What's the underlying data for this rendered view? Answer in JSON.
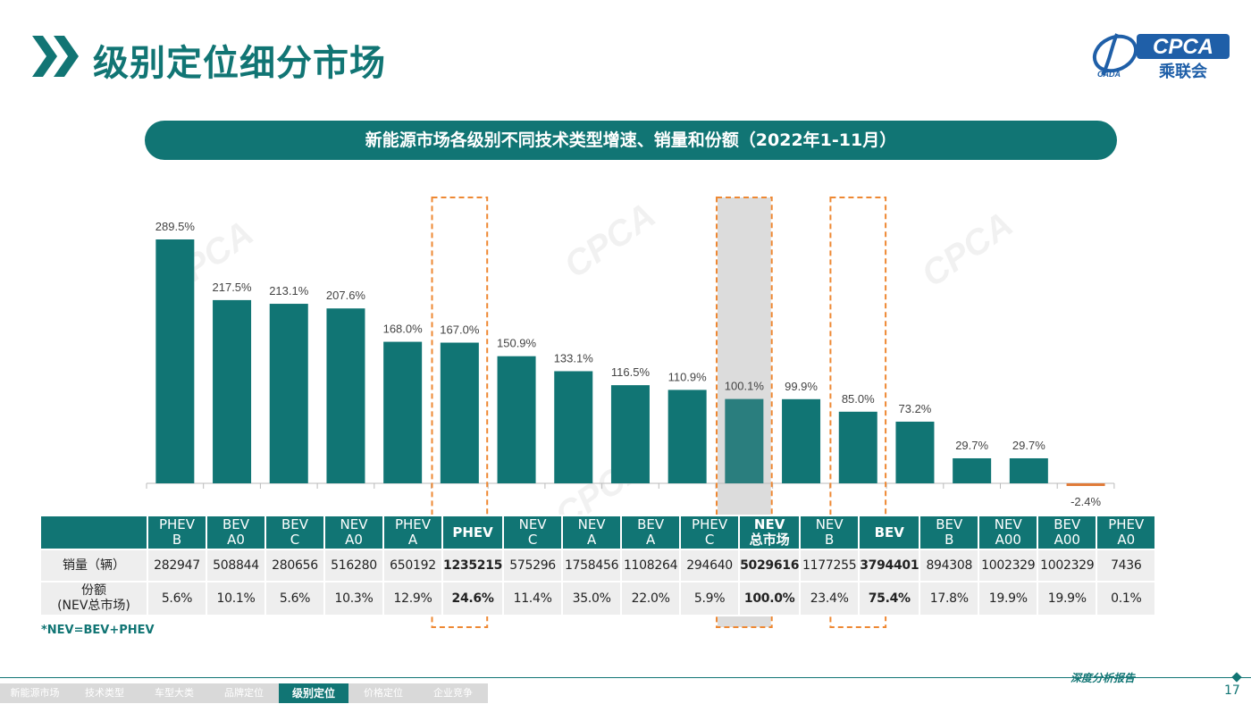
{
  "header": {
    "title": "级别定位细分市场",
    "logo_text": "CPCA",
    "logo_subtext": "乘联会",
    "logo_small": "CADA"
  },
  "banner": {
    "text": "新能源市场各级别不同技术类型增速、销量和份额（2022年1-11月）"
  },
  "chart_data": {
    "type": "bar",
    "title": "新能源市场各级别不同技术类型增速、销量和份额（2022年1-11月）",
    "categories": [
      "PHEV B",
      "BEV A0",
      "BEV C",
      "NEV A0",
      "PHEV A",
      "PHEV",
      "NEV C",
      "NEV A",
      "BEV A",
      "PHEV C",
      "NEV 总市场",
      "NEV B",
      "BEV",
      "BEV B",
      "NEV A00",
      "BEV A00",
      "PHEV A0"
    ],
    "series": [
      {
        "values": [
          289.5,
          217.5,
          213.1,
          207.6,
          168.0,
          167.0,
          150.9,
          133.1,
          116.5,
          110.9,
          100.1,
          99.9,
          85.0,
          73.2,
          29.7,
          29.7,
          -2.4
        ]
      }
    ],
    "value_labels": [
      "289.5%",
      "217.5%",
      "213.1%",
      "207.6%",
      "168.0%",
      "167.0%",
      "150.9%",
      "133.1%",
      "116.5%",
      "110.9%",
      "100.1%",
      "99.9%",
      "85.0%",
      "73.2%",
      "29.7%",
      "29.7%",
      "-2.4%"
    ],
    "value_unit": "%",
    "ylim": [
      -10,
      300
    ],
    "grid": false,
    "colors": {
      "bar": "#117574",
      "negative_bar": "#e07b39",
      "nev_total_bar": "#2a7e7e",
      "highlight_fill": "#d6d6d6",
      "dashed_box": "#ee8833"
    },
    "highlight_dashed": [
      "PHEV",
      "NEV 总市场",
      "BEV"
    ],
    "highlight_shaded": [
      "NEV 总市场"
    ]
  },
  "table": {
    "headers": [
      {
        "l1": "PHEV",
        "l2": "B",
        "bold": false
      },
      {
        "l1": "BEV",
        "l2": "A0",
        "bold": false
      },
      {
        "l1": "BEV",
        "l2": "C",
        "bold": false
      },
      {
        "l1": "NEV",
        "l2": "A0",
        "bold": false
      },
      {
        "l1": "PHEV",
        "l2": "A",
        "bold": false
      },
      {
        "l1": "PHEV",
        "l2": "",
        "bold": true
      },
      {
        "l1": "NEV",
        "l2": "C",
        "bold": false
      },
      {
        "l1": "NEV",
        "l2": "A",
        "bold": false
      },
      {
        "l1": "BEV",
        "l2": "A",
        "bold": false
      },
      {
        "l1": "PHEV",
        "l2": "C",
        "bold": false
      },
      {
        "l1": "NEV",
        "l2": "总市场",
        "bold": true
      },
      {
        "l1": "NEV",
        "l2": "B",
        "bold": false
      },
      {
        "l1": "BEV",
        "l2": "",
        "bold": true
      },
      {
        "l1": "BEV",
        "l2": "B",
        "bold": false
      },
      {
        "l1": "NEV",
        "l2": "A00",
        "bold": false
      },
      {
        "l1": "BEV",
        "l2": "A00",
        "bold": false
      },
      {
        "l1": "PHEV",
        "l2": "A0",
        "bold": false
      }
    ],
    "sales_label": "销量（辆）",
    "sales": [
      "282947",
      "508844",
      "280656",
      "516280",
      "650192",
      "1235215",
      "575296",
      "1758456",
      "1108264",
      "294640",
      "5029616",
      "1177255",
      "3794401",
      "894308",
      "1002329",
      "1002329",
      "7436"
    ],
    "share_label_l1": "份额",
    "share_label_l2": "(NEV总市场)",
    "shares": [
      "5.6%",
      "10.1%",
      "5.6%",
      "10.3%",
      "12.9%",
      "24.6%",
      "11.4%",
      "35.0%",
      "22.0%",
      "5.9%",
      "100.0%",
      "23.4%",
      "75.4%",
      "17.8%",
      "19.9%",
      "19.9%",
      "0.1%"
    ],
    "bold_columns": [
      5,
      10,
      12
    ]
  },
  "note": "*NEV=BEV+PHEV",
  "footer": {
    "caption": "深度分析报告",
    "page": "17",
    "nav": [
      {
        "label": "新能源市场",
        "active": false
      },
      {
        "label": "技术类型",
        "active": false
      },
      {
        "label": "车型大类",
        "active": false
      },
      {
        "label": "品牌定位",
        "active": false
      },
      {
        "label": "级别定位",
        "active": true
      },
      {
        "label": "价格定位",
        "active": false
      },
      {
        "label": "企业竞争",
        "active": false
      }
    ]
  }
}
